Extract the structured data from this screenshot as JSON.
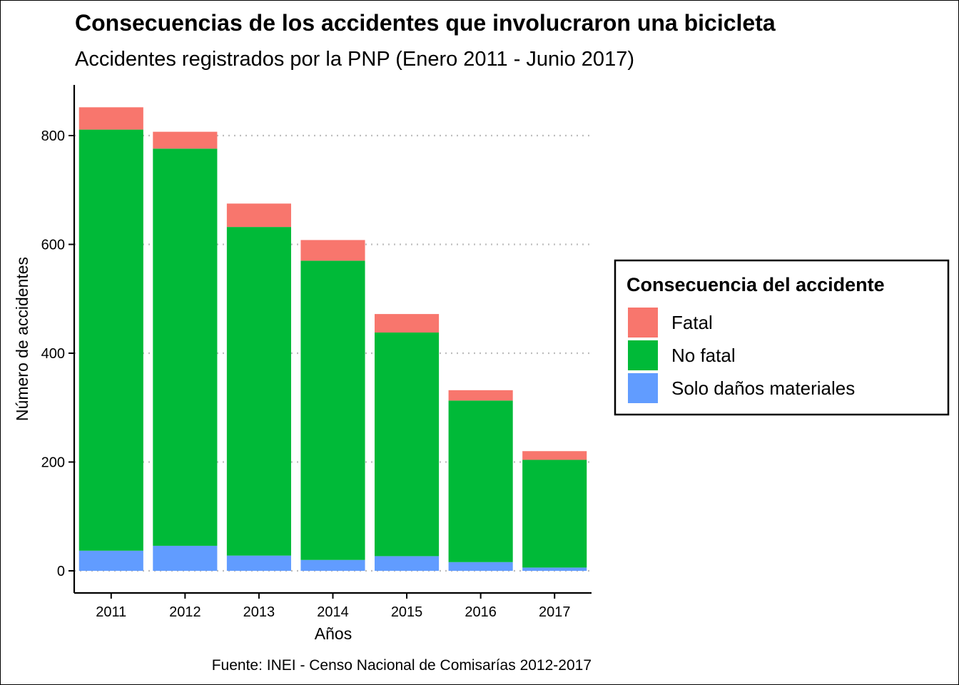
{
  "chart_data": {
    "type": "bar",
    "stacked": true,
    "title": "Consecuencias de los accidentes que involucraron una bicicleta",
    "subtitle": "Accidentes registrados por la PNP (Enero 2011 - Junio 2017)",
    "xlabel": "Años",
    "ylabel": "Número de accidentes",
    "caption": "Fuente: INEI - Censo Nacional de Comisarías 2012-2017",
    "categories": [
      "2011",
      "2012",
      "2013",
      "2014",
      "2015",
      "2016",
      "2017"
    ],
    "series": [
      {
        "name": "Solo daños materiales",
        "color": "#619CFF",
        "values": [
          37,
          46,
          28,
          20,
          27,
          16,
          6
        ]
      },
      {
        "name": "No fatal",
        "color": "#00BA38",
        "values": [
          774,
          730,
          604,
          550,
          411,
          297,
          198
        ]
      },
      {
        "name": "Fatal",
        "color": "#F8766D",
        "values": [
          41,
          31,
          43,
          38,
          34,
          19,
          16
        ]
      }
    ],
    "ylim": [
      0,
      900
    ],
    "yticks": [
      0,
      200,
      400,
      600,
      800
    ],
    "grid": "horizontal-dotted",
    "legend": {
      "title": "Consecuencia del accidente",
      "placement": "right",
      "order": [
        "Fatal",
        "No fatal",
        "Solo daños materiales"
      ]
    }
  }
}
